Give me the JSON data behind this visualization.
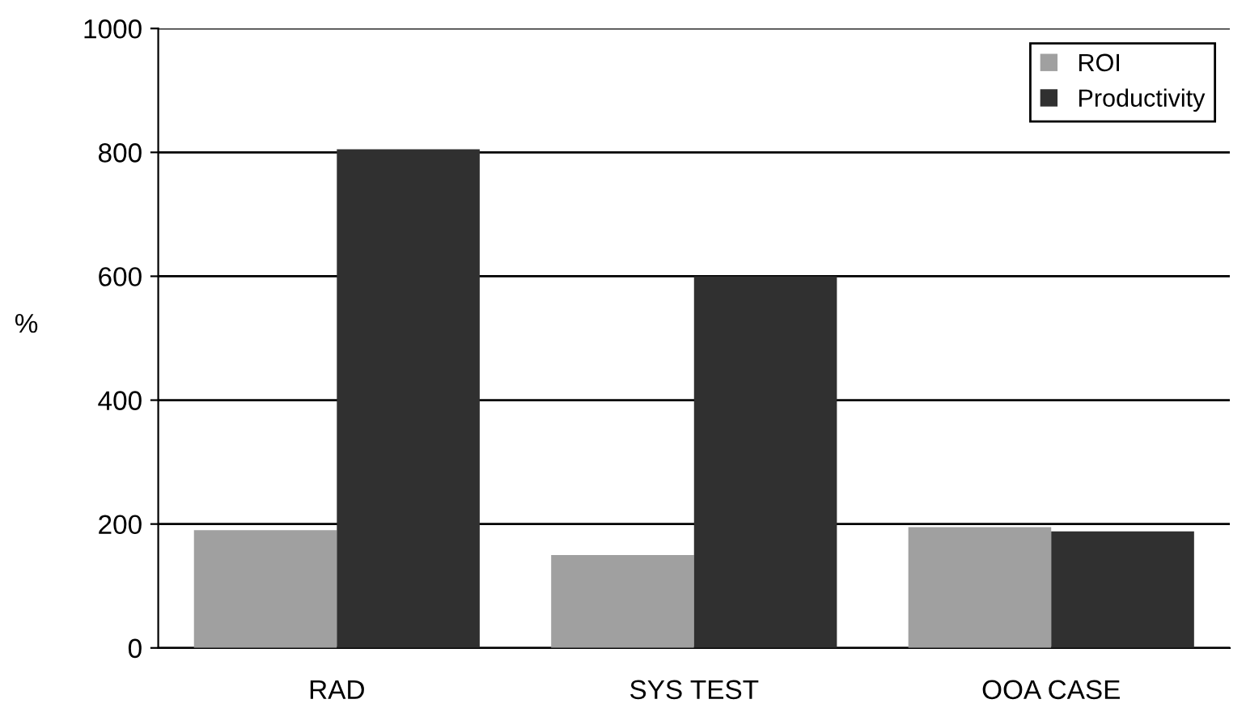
{
  "chart_data": {
    "type": "bar",
    "ylabel": "%",
    "categories": [
      "RAD",
      "SYS TEST",
      "OOA CASE"
    ],
    "series": [
      {
        "name": "ROI",
        "color": "#a0a0a0",
        "values": [
          190,
          150,
          195
        ]
      },
      {
        "name": "Productivity",
        "color": "#303030",
        "values": [
          805,
          600,
          188
        ]
      }
    ],
    "ylim": [
      0,
      1000
    ],
    "yticks": [
      0,
      200,
      400,
      600,
      800,
      1000
    ],
    "grid": "y",
    "legend": "top right"
  }
}
